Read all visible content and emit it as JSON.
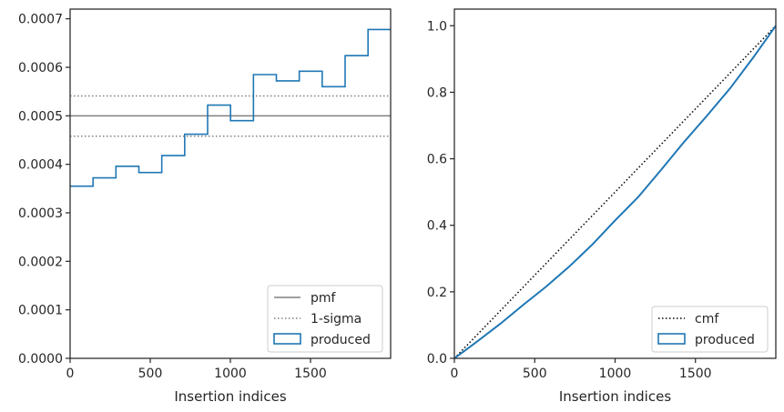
{
  "chart_data": [
    {
      "type": "step-histogram",
      "xlabel": "Insertion indices",
      "ylabel": "",
      "xlim": [
        0,
        2000
      ],
      "ylim": [
        0,
        0.00072
      ],
      "xticks": [
        0,
        500,
        1000,
        1500
      ],
      "xtick_labels": [
        "0",
        "500",
        "1000",
        "1500"
      ],
      "yticks": [
        0,
        0.0001,
        0.0002,
        0.0003,
        0.0004,
        0.0005,
        0.0006,
        0.0007
      ],
      "ytick_labels": [
        "0.0000",
        "0.0001",
        "0.0002",
        "0.0003",
        "0.0004",
        "0.0005",
        "0.0006",
        "0.0007"
      ],
      "legend_position": "lower right",
      "reference_lines": [
        {
          "label": "pmf",
          "y": 0.0005,
          "style": "solid",
          "color": "#808080"
        },
        {
          "label": "1-sigma",
          "y": 0.000541,
          "style": "dotted",
          "color": "#808080"
        },
        {
          "label": "1-sigma",
          "y": 0.000458,
          "style": "dotted",
          "color": "#808080"
        }
      ],
      "legend": [
        {
          "label": "pmf",
          "kind": "solid",
          "color": "#808080"
        },
        {
          "label": "1-sigma",
          "kind": "dotted",
          "color": "#808080"
        },
        {
          "label": "produced",
          "kind": "patch",
          "color": "#1f77b4"
        }
      ],
      "series": [
        {
          "name": "produced",
          "color": "#1f77b4",
          "bin_edges": [
            0,
            143,
            286,
            429,
            572,
            715,
            858,
            1001,
            1144,
            1287,
            1430,
            1573,
            1716,
            1859,
            2000
          ],
          "values": [
            0.000355,
            0.000372,
            0.000396,
            0.000383,
            0.000418,
            0.000462,
            0.000522,
            0.00049,
            0.000585,
            0.000572,
            0.000592,
            0.00056,
            0.000624,
            0.000678
          ]
        }
      ]
    },
    {
      "type": "line",
      "xlabel": "Insertion indices",
      "ylabel": "",
      "xlim": [
        0,
        2000
      ],
      "ylim": [
        0,
        1.05
      ],
      "xticks": [
        0,
        500,
        1000,
        1500
      ],
      "xtick_labels": [
        "0",
        "500",
        "1000",
        "1500"
      ],
      "yticks": [
        0,
        0.2,
        0.4,
        0.6,
        0.8,
        1.0
      ],
      "ytick_labels": [
        "0.0",
        "0.2",
        "0.4",
        "0.6",
        "0.8",
        "1.0"
      ],
      "legend_position": "lower right",
      "legend": [
        {
          "label": "cmf",
          "kind": "dotted",
          "color": "#000000"
        },
        {
          "label": "produced",
          "kind": "patch",
          "color": "#1f77b4"
        }
      ],
      "series": [
        {
          "name": "cmf",
          "style": "dotted",
          "color": "#000000",
          "x": [
            0,
            2000
          ],
          "y": [
            0,
            1.0
          ]
        },
        {
          "name": "produced",
          "style": "solid",
          "color": "#1f77b4",
          "x": [
            0,
            143,
            286,
            429,
            572,
            715,
            858,
            1001,
            1144,
            1287,
            1430,
            1573,
            1716,
            1859,
            2000
          ],
          "y": [
            0,
            0.051,
            0.104,
            0.161,
            0.216,
            0.276,
            0.342,
            0.415,
            0.485,
            0.567,
            0.651,
            0.73,
            0.812,
            0.904,
            1.0
          ]
        }
      ]
    }
  ]
}
